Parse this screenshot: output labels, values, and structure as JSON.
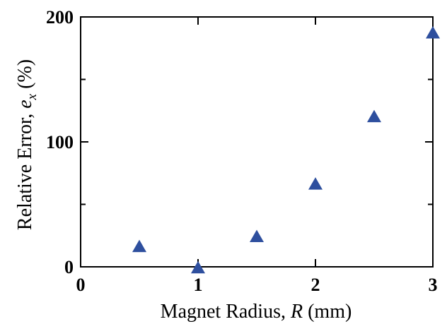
{
  "chart_data": {
    "type": "scatter",
    "xlabel": {
      "prefix": "Magnet Radius, ",
      "symbol": "R",
      "suffix": " (mm)"
    },
    "ylabel": {
      "prefix": "Relative Error, ",
      "symbol": "e",
      "subscript": "x",
      "suffix": " (%)"
    },
    "xlim": [
      0,
      3
    ],
    "ylim": [
      0,
      200
    ],
    "xticks": [
      0,
      1,
      2,
      3
    ],
    "xtick_labels": [
      "0",
      "1",
      "2",
      "3"
    ],
    "yticks": [
      0,
      100,
      200
    ],
    "ytick_labels": [
      "0",
      "100",
      "200"
    ],
    "y_minor_ticks": [
      50,
      150
    ],
    "grid": false,
    "marker": "triangle",
    "marker_color": "#2e4f9e",
    "series": [
      {
        "x": [
          0.5,
          1.0,
          1.5,
          2.0,
          2.5,
          3.0
        ],
        "y": [
          16,
          -1,
          24,
          66,
          120,
          187
        ]
      }
    ]
  }
}
